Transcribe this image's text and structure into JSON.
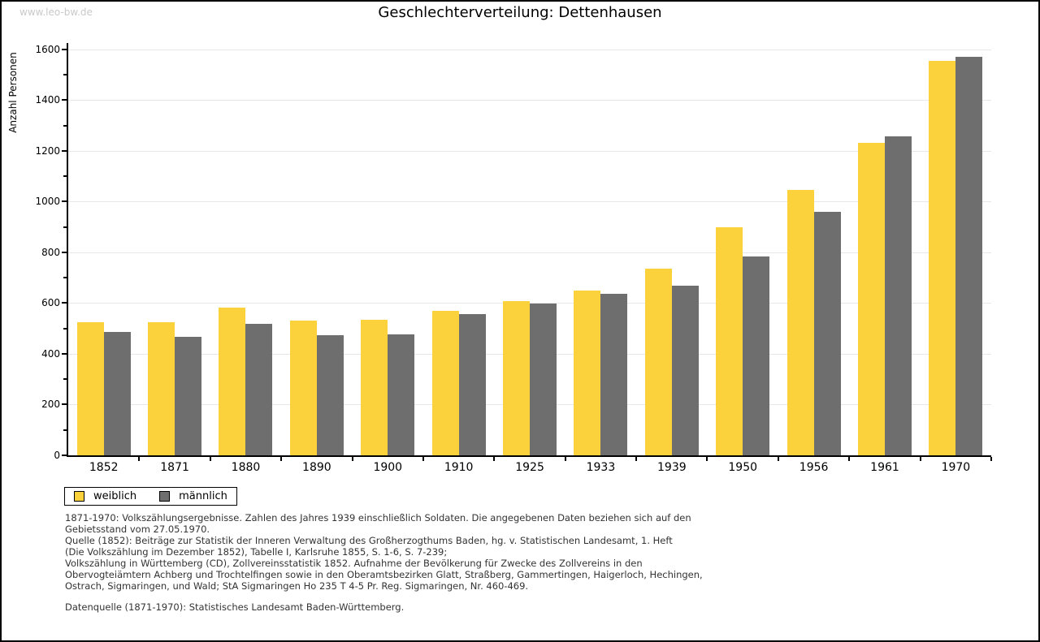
{
  "page": {
    "watermark": "www.leo-bw.de",
    "title": "Geschlechterverteilung: Dettenhausen"
  },
  "chart_data": {
    "type": "bar",
    "title": "Geschlechterverteilung: Dettenhausen",
    "xlabel": "",
    "ylabel": "Anzahl Personen",
    "ylim": [
      0,
      1600
    ],
    "ytick_step": 200,
    "ytick_minor_step": 100,
    "grid": true,
    "legend_position": "bottom-left",
    "categories": [
      "1852",
      "1871",
      "1880",
      "1890",
      "1900",
      "1910",
      "1925",
      "1933",
      "1939",
      "1950",
      "1956",
      "1961",
      "1970"
    ],
    "series": [
      {
        "name": "weiblich",
        "color": "#FBD13C",
        "values": [
          525,
          524,
          581,
          531,
          534,
          570,
          609,
          650,
          736,
          900,
          1045,
          1232,
          1556
        ]
      },
      {
        "name": "männlich",
        "color": "#6E6E6E",
        "values": [
          486,
          466,
          518,
          473,
          477,
          558,
          599,
          637,
          669,
          785,
          960,
          1256,
          1570
        ]
      }
    ]
  },
  "footer": {
    "lines": [
      "1871-1970: Volkszählungsergebnisse. Zahlen des Jahres 1939 einschließlich Soldaten. Die angegebenen Daten beziehen sich auf den",
      "Gebietsstand vom 27.05.1970.",
      "Quelle (1852): Beiträge zur Statistik der Inneren Verwaltung des Großherzogthums Baden, hg. v. Statistischen Landesamt, 1. Heft",
      "(Die Volkszählung im Dezember 1852), Tabelle I, Karlsruhe 1855, S. 1-6, S. 7-239;",
      "Volkszählung in Württemberg (CD), Zollvereinsstatistik 1852. Aufnahme der Bevölkerung für Zwecke des Zollvereins in den",
      "Obervogteiämtern Achberg und Trochtelfingen sowie in den Oberamtsbezirken Glatt, Straßberg, Gammertingen, Haigerloch, Hechingen,",
      "Ostrach, Sigmaringen, und Wald; StA Sigmaringen Ho 235 T 4-5 Pr. Reg. Sigmaringen, Nr. 460-469."
    ],
    "datasource": "Datenquelle (1871-1970): Statistisches Landesamt Baden-Württemberg."
  }
}
